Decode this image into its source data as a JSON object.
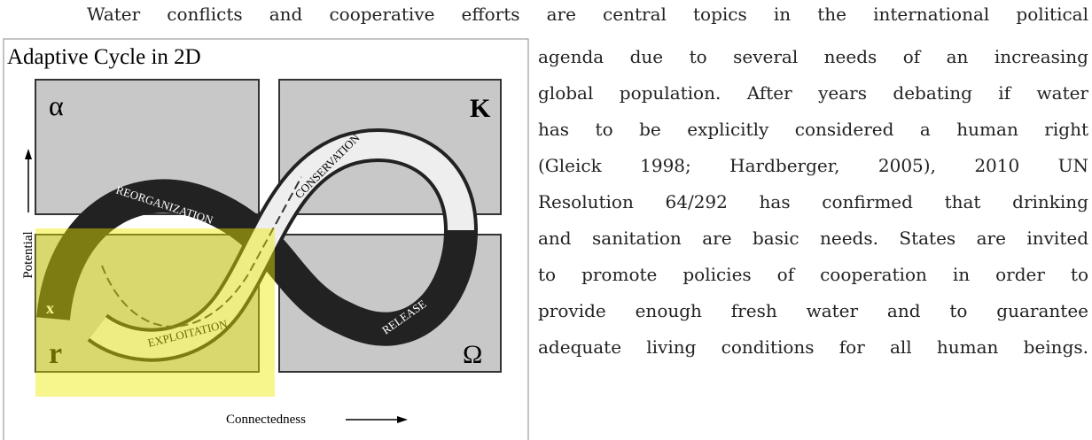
{
  "paragraph": {
    "lines": [
      "Water conflicts and cooperative efforts are central topics in the international political",
      "agenda due to several needs of an increasing",
      "global population.  After years debating if water",
      "has to be explicitly considered a human right",
      "(Gleick 1998; Hardberger, 2005), 2010 UN",
      "Resolution 64/292 has confirmed that drinking",
      "and sanitation are basic needs. States are invited",
      "to promote policies of cooperation in order to",
      "provide enough fresh water and to guarantee",
      "adequate living conditions for all human beings."
    ]
  },
  "figure": {
    "title": "Adaptive Cycle in 2D",
    "quadrants": {
      "alpha": "α",
      "k": "K",
      "r": "r",
      "omega": "Ω"
    },
    "exit": "x",
    "phases": {
      "reorganization": "REORGANIZATION",
      "conservation": "CONSERVATION",
      "exploitation": "EXPLOITATION",
      "release": "RELEASE"
    },
    "y_axis": "Potential",
    "x_axis": "Connectedness"
  }
}
